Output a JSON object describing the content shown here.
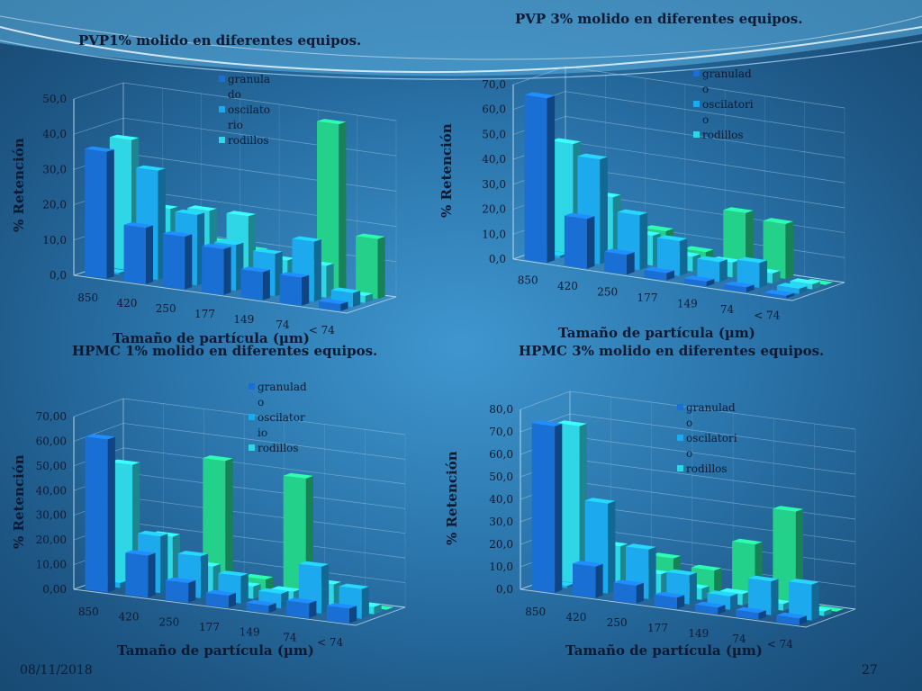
{
  "footer": {
    "date": "08/11/2018",
    "page": "27"
  },
  "chart_data": [
    {
      "type": "bar",
      "title": "PVP1% molido en diferentes equipos.",
      "xlabel": "Tamaño de partícula (µm)",
      "ylabel": "% Retención",
      "categories": [
        "850",
        "420",
        "250",
        "177",
        "149",
        "74",
        "< 74"
      ],
      "yticks": [
        "0,0",
        "10,0",
        "20,0",
        "30,0",
        "40,0",
        "50,0"
      ],
      "ylim": [
        0,
        50
      ],
      "legend_position": "top-right",
      "series": [
        {
          "name": "granulado",
          "legend_lines": [
            "granula",
            "do"
          ],
          "color": "#1a6fd4",
          "values": [
            36.0,
            16.0,
            15.0,
            13.0,
            8.0,
            8.0,
            2.0
          ]
        },
        {
          "name": "oscilatorio",
          "legend_lines": [
            "oscilato",
            "rio"
          ],
          "color": "#1ca9ee",
          "values": [
            0.5,
            31.0,
            20.0,
            13.0,
            12.0,
            17.0,
            4.0
          ]
        },
        {
          "name": "rodillos",
          "legend_lines": [
            "rodillos"
          ],
          "color": "#2ed6e6",
          "values": [
            37.0,
            19.0,
            20.0,
            20.0,
            9.0,
            9.0,
            2.0
          ]
        },
        {
          "name": "",
          "legend_lines": [],
          "color": "#23d18b",
          "values": [
            0.0,
            5.0,
            10.0,
            9.0,
            6.0,
            48.0,
            17.0
          ]
        }
      ]
    },
    {
      "type": "bar",
      "title": "PVP 3% molido en diferentes equipos.",
      "xlabel": "Tamaño de partícula (µm)",
      "ylabel": "% Retención",
      "categories": [
        "850",
        "420",
        "250",
        "177",
        "149",
        "74",
        "< 74"
      ],
      "yticks": [
        "0,0",
        "10,0",
        "20,0",
        "30,0",
        "40,0",
        "50,0",
        "60,0",
        "70,0"
      ],
      "ylim": [
        0,
        70
      ],
      "legend_position": "top-right",
      "series": [
        {
          "name": "granulado",
          "legend_lines": [
            "granulad",
            "o"
          ],
          "color": "#1a6fd4",
          "values": [
            66.0,
            20.0,
            8.0,
            3.0,
            2.0,
            2.0,
            1.0
          ]
        },
        {
          "name": "oscilatorio",
          "legend_lines": [
            "oscilatori",
            "o"
          ],
          "color": "#1ca9ee",
          "values": [
            1.0,
            42.0,
            22.0,
            14.0,
            8.0,
            10.0,
            2.0
          ]
        },
        {
          "name": "rodillos",
          "legend_lines": [
            "rodillos"
          ],
          "color": "#2ed6e6",
          "values": [
            44.0,
            25.0,
            12.0,
            6.0,
            6.0,
            4.0,
            2.0
          ]
        },
        {
          "name": "",
          "legend_lines": [],
          "color": "#23d18b",
          "values": [
            0.0,
            15.0,
            12.0,
            6.0,
            24.0,
            22.0,
            0.0
          ]
        }
      ]
    },
    {
      "type": "bar",
      "title": "HPMC 1% molido en diferentes equipos.",
      "xlabel": "Tamaño de partícula (µm)",
      "ylabel": "% Retención",
      "categories": [
        "850",
        "420",
        "250",
        "177",
        "149",
        "74",
        "< 74"
      ],
      "yticks": [
        "0,00",
        "10,00",
        "20,00",
        "30,00",
        "40,00",
        "50,00",
        "60,00",
        "70,00"
      ],
      "ylim": [
        0,
        70
      ],
      "legend_position": "top-right",
      "series": [
        {
          "name": "granulado",
          "legend_lines": [
            "granulad",
            "o"
          ],
          "color": "#1a6fd4",
          "values": [
            62.0,
            17.0,
            8.0,
            5.0,
            3.0,
            6.0,
            6.0
          ]
        },
        {
          "name": "oscilatorio",
          "legend_lines": [
            "oscilator",
            "io"
          ],
          "color": "#1ca9ee",
          "values": [
            2.0,
            23.0,
            17.0,
            11.0,
            6.0,
            19.0,
            12.0
          ]
        },
        {
          "name": "rodillos",
          "legend_lines": [
            "rodillos"
          ],
          "color": "#2ed6e6",
          "values": [
            48.0,
            21.0,
            11.0,
            5.0,
            5.0,
            10.0,
            3.0
          ]
        },
        {
          "name": "",
          "legend_lines": [],
          "color": "#23d18b",
          "values": [
            0.0,
            11.0,
            52.0,
            6.0,
            49.0,
            2.0,
            0.0
          ]
        }
      ]
    },
    {
      "type": "bar",
      "title": "HPMC 3% molido en diferentes equipos.",
      "xlabel": "Tamaño de partícula (µm)",
      "ylabel": "% Retención",
      "categories": [
        "850",
        "420",
        "250",
        "177",
        "149",
        "74",
        "< 74"
      ],
      "yticks": [
        "0,0",
        "10,0",
        "20,0",
        "30,0",
        "40,0",
        "50,0",
        "60,0",
        "70,0",
        "80,0"
      ],
      "ylim": [
        0,
        80
      ],
      "legend_position": "top-right",
      "series": [
        {
          "name": "granulado",
          "legend_lines": [
            "granulad",
            "o"
          ],
          "color": "#1a6fd4",
          "values": [
            74.0,
            14.0,
            8.0,
            5.0,
            3.0,
            3.0,
            3.0
          ]
        },
        {
          "name": "oscilatorio",
          "legend_lines": [
            "oscilatori",
            "o"
          ],
          "color": "#1ca9ee",
          "values": [
            1.0,
            40.0,
            22.0,
            13.0,
            6.0,
            15.0,
            16.0
          ]
        },
        {
          "name": "rodillos",
          "legend_lines": [
            "rodillos"
          ],
          "color": "#2ed6e6",
          "values": [
            70.0,
            19.0,
            9.0,
            5.0,
            5.0,
            3.0,
            2.0
          ]
        },
        {
          "name": "",
          "legend_lines": [],
          "color": "#23d18b",
          "values": [
            0.0,
            15.0,
            14.0,
            11.0,
            25.0,
            42.0,
            0.0
          ]
        }
      ]
    }
  ]
}
